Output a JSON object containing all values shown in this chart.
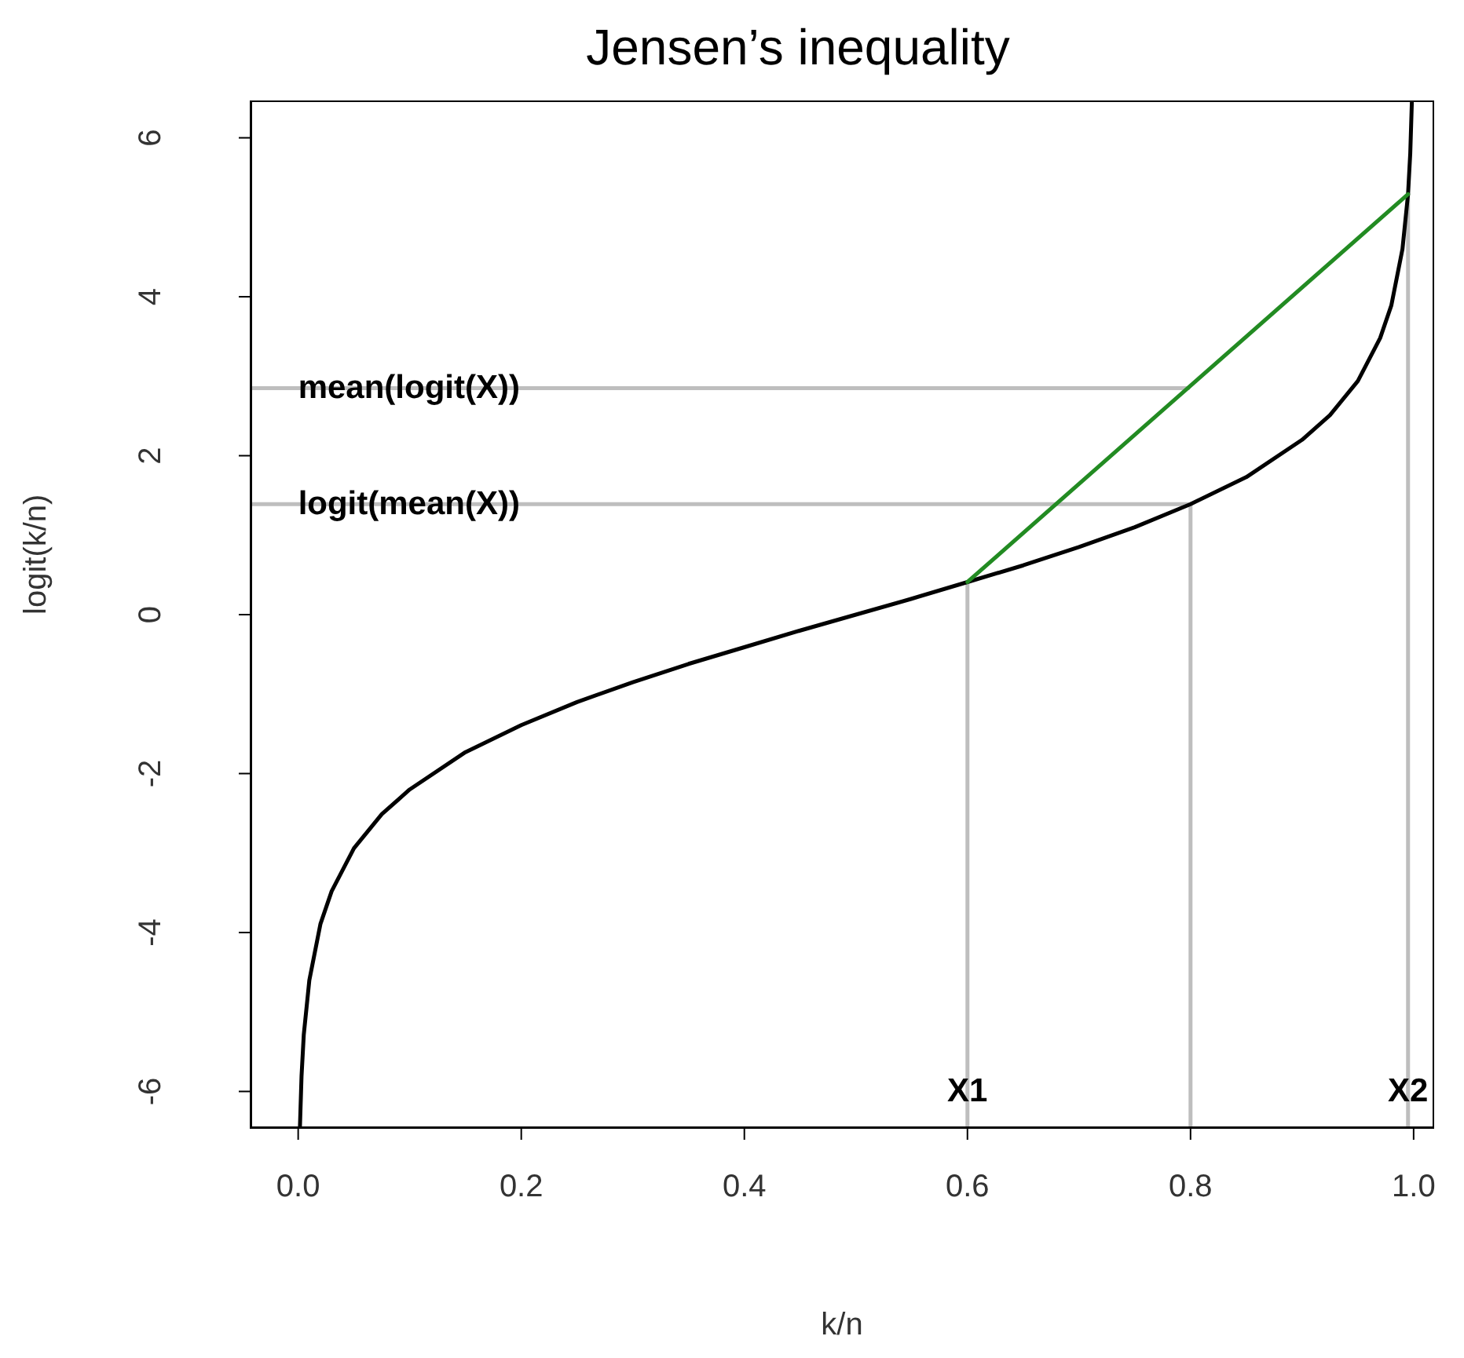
{
  "chart_data": {
    "type": "line",
    "title": "Jensen’s inequality",
    "xlabel": "k/n",
    "ylabel": "logit(k/n)",
    "xlim": [
      -0.042,
      1.017
    ],
    "ylim": [
      -6.45,
      6.45
    ],
    "xticks": [
      {
        "value": 0,
        "label": "0.0"
      },
      {
        "value": 0.2,
        "label": "0.2"
      },
      {
        "value": 0.4,
        "label": "0.4"
      },
      {
        "value": 0.6,
        "label": "0.6"
      },
      {
        "value": 0.8,
        "label": "0.8"
      },
      {
        "value": 1,
        "label": "1.0"
      }
    ],
    "yticks": [
      -6,
      -4,
      -2,
      0,
      2,
      4,
      6
    ],
    "series": [
      {
        "color": "#bebebe",
        "x": [
          -0.042,
          0.798
        ],
        "values": [
          2.85,
          2.85
        ]
      },
      {
        "color": "#bebebe",
        "x": [
          -0.042,
          0.8
        ],
        "values": [
          1.39,
          1.39
        ]
      },
      {
        "color": "#bebebe",
        "x": [
          0.6,
          0.6
        ],
        "values": [
          -6.45,
          0.41
        ]
      },
      {
        "color": "#bebebe",
        "x": [
          0.8,
          0.8
        ],
        "values": [
          -6.45,
          1.39
        ]
      },
      {
        "color": "#bebebe",
        "x": [
          0.995,
          0.995
        ],
        "values": [
          -6.45,
          5.29
        ]
      },
      {
        "color": "#000000",
        "x": [
          0.0016,
          0.003,
          0.005,
          0.01,
          0.02,
          0.03,
          0.05,
          0.075,
          0.1,
          0.15,
          0.2,
          0.25,
          0.3,
          0.35,
          0.4,
          0.45,
          0.5,
          0.55,
          0.6,
          0.65,
          0.7,
          0.75,
          0.8,
          0.85,
          0.9,
          0.925,
          0.95,
          0.97,
          0.98,
          0.99,
          0.995,
          0.997,
          0.9984
        ],
        "values": [
          -6.44,
          -5.81,
          -5.29,
          -4.6,
          -3.89,
          -3.48,
          -2.94,
          -2.51,
          -2.2,
          -1.73,
          -1.39,
          -1.1,
          -0.85,
          -0.62,
          -0.41,
          -0.2,
          0,
          0.2,
          0.41,
          0.62,
          0.85,
          1.1,
          1.39,
          1.73,
          2.2,
          2.51,
          2.94,
          3.48,
          3.89,
          4.6,
          5.29,
          5.81,
          6.44
        ]
      },
      {
        "color": "#228b22",
        "x": [
          0.6,
          0.995
        ],
        "values": [
          0.41,
          5.29
        ]
      }
    ],
    "annotations": [
      {
        "text": "mean(logit(X))",
        "x": 0,
        "y": 2.85
      },
      {
        "text": "logit(mean(X))",
        "x": 0,
        "y": 1.39
      },
      {
        "text": "X1",
        "x": 0.6,
        "y": -6
      },
      {
        "text": "X2",
        "x": 0.995,
        "y": -6
      }
    ]
  }
}
